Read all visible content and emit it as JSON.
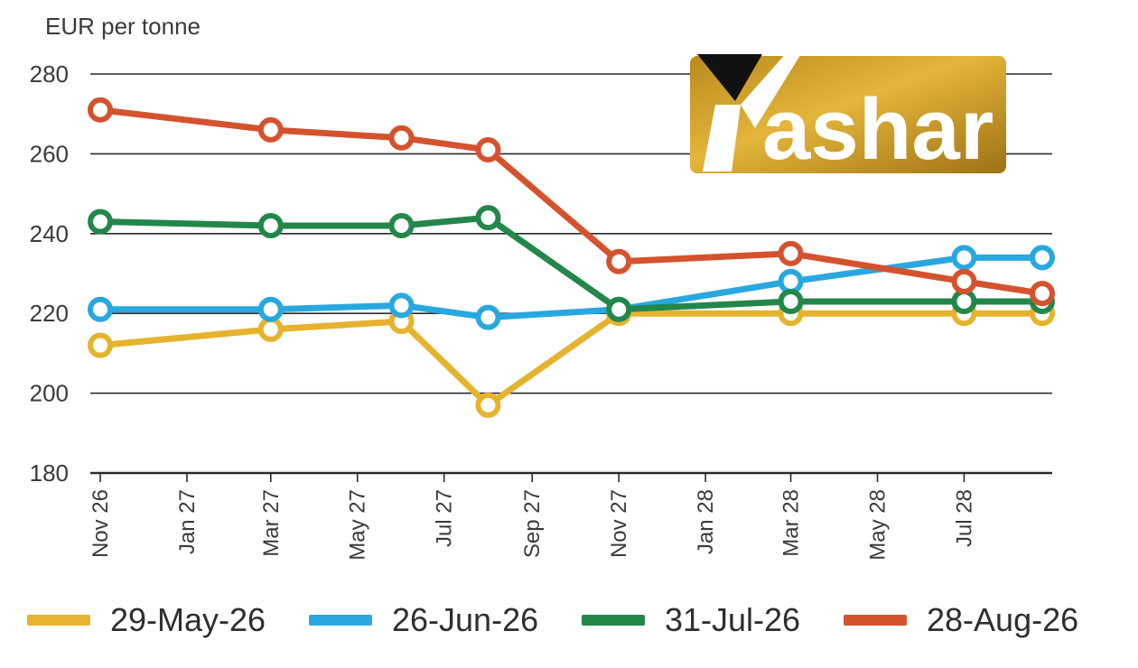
{
  "chart_data": {
    "type": "line",
    "ylabel": "EUR per tonne",
    "ylim": [
      180,
      280
    ],
    "yticks": [
      180,
      200,
      220,
      240,
      260,
      280
    ],
    "xlim": [
      "2026-10-25",
      "2028-09-01"
    ],
    "xticks": [
      {
        "date": "2026-11-01",
        "label": "Nov 26"
      },
      {
        "date": "2027-01-01",
        "label": "Jan 27"
      },
      {
        "date": "2027-03-01",
        "label": "Mar 27"
      },
      {
        "date": "2027-05-01",
        "label": "May 27"
      },
      {
        "date": "2027-07-01",
        "label": "Jul 27"
      },
      {
        "date": "2027-09-01",
        "label": "Sep 27"
      },
      {
        "date": "2027-11-01",
        "label": "Nov 27"
      },
      {
        "date": "2028-01-01",
        "label": "Jan 28"
      },
      {
        "date": "2028-03-01",
        "label": "Mar 28"
      },
      {
        "date": "2028-05-01",
        "label": "May 28"
      },
      {
        "date": "2028-07-01",
        "label": "Jul 28"
      }
    ],
    "grid": "horizontal",
    "legend_position": "bottom",
    "series": [
      {
        "name": "29-May-26",
        "color": "#e6b32e",
        "points": [
          [
            "2026-11-01",
            212
          ],
          [
            "2027-03-01",
            216
          ],
          [
            "2027-06-01",
            218
          ],
          [
            "2027-08-01",
            197
          ],
          [
            "2027-11-01",
            220
          ],
          [
            "2028-03-01",
            220
          ],
          [
            "2028-07-01",
            220
          ],
          [
            "2028-08-25",
            220
          ]
        ]
      },
      {
        "name": "26-Jun-26",
        "color": "#29a8df",
        "points": [
          [
            "2026-11-01",
            221
          ],
          [
            "2027-03-01",
            221
          ],
          [
            "2027-06-01",
            222
          ],
          [
            "2027-08-01",
            219
          ],
          [
            "2027-11-01",
            221
          ],
          [
            "2028-03-01",
            228
          ],
          [
            "2028-07-01",
            234
          ],
          [
            "2028-08-25",
            234
          ]
        ]
      },
      {
        "name": "31-Jul-26",
        "color": "#23874a",
        "points": [
          [
            "2026-11-01",
            243
          ],
          [
            "2027-03-01",
            242
          ],
          [
            "2027-06-01",
            242
          ],
          [
            "2027-08-01",
            244
          ],
          [
            "2027-11-01",
            221
          ],
          [
            "2028-03-01",
            223
          ],
          [
            "2028-07-01",
            223
          ],
          [
            "2028-08-25",
            223
          ]
        ]
      },
      {
        "name": "28-Aug-26",
        "color": "#d4532e",
        "points": [
          [
            "2026-11-01",
            271
          ],
          [
            "2027-03-01",
            266
          ],
          [
            "2027-06-01",
            264
          ],
          [
            "2027-08-01",
            261
          ],
          [
            "2027-11-01",
            233
          ],
          [
            "2028-03-01",
            235
          ],
          [
            "2028-07-01",
            228
          ],
          [
            "2028-08-25",
            225
          ]
        ]
      }
    ]
  },
  "logo": {
    "text": "Yashar"
  }
}
